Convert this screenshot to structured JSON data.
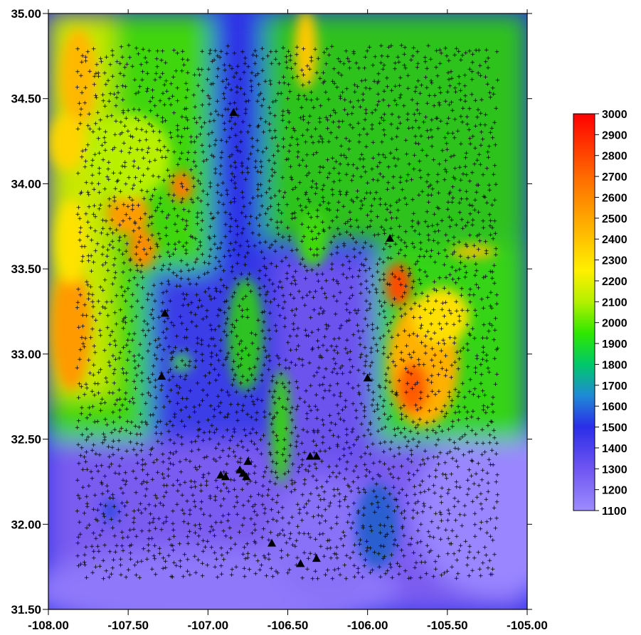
{
  "map": {
    "x_range": [
      -108.0,
      -105.0
    ],
    "y_range": [
      31.5,
      35.0
    ],
    "x_ticks": [
      {
        "value": -108.0,
        "label": "-108.00"
      },
      {
        "value": -107.5,
        "label": "-107.50"
      },
      {
        "value": -107.0,
        "label": "-107.00"
      },
      {
        "value": -106.5,
        "label": "-106.50"
      },
      {
        "value": -106.0,
        "label": "-106.00"
      },
      {
        "value": -105.5,
        "label": "-105.50"
      },
      {
        "value": -105.0,
        "label": "-105.00"
      }
    ],
    "y_ticks": [
      {
        "value": 35.0,
        "label": "35.00"
      },
      {
        "value": 34.5,
        "label": "34.50"
      },
      {
        "value": 34.0,
        "label": "34.00"
      },
      {
        "value": 33.5,
        "label": "33.50"
      },
      {
        "value": 33.0,
        "label": "33.00"
      },
      {
        "value": 32.5,
        "label": "32.50"
      },
      {
        "value": 32.0,
        "label": "32.00"
      },
      {
        "value": 31.5,
        "label": "31.50"
      }
    ],
    "station_extent": {
      "x": [
        -107.82,
        -105.18
      ],
      "y": [
        31.68,
        34.82
      ]
    },
    "station_marker": "+",
    "triangle_markers": [
      {
        "x": -106.84,
        "y": 34.42
      },
      {
        "x": -105.86,
        "y": 33.68
      },
      {
        "x": -107.27,
        "y": 33.24
      },
      {
        "x": -107.29,
        "y": 32.87
      },
      {
        "x": -106.0,
        "y": 32.86
      },
      {
        "x": -106.36,
        "y": 32.4
      },
      {
        "x": -106.32,
        "y": 32.4
      },
      {
        "x": -106.75,
        "y": 32.37
      },
      {
        "x": -106.8,
        "y": 32.32
      },
      {
        "x": -106.78,
        "y": 32.3
      },
      {
        "x": -106.92,
        "y": 32.29
      },
      {
        "x": -106.89,
        "y": 32.28
      },
      {
        "x": -106.76,
        "y": 32.28
      },
      {
        "x": -106.6,
        "y": 31.89
      },
      {
        "x": -106.42,
        "y": 31.77
      },
      {
        "x": -106.32,
        "y": 31.8
      }
    ]
  },
  "colorbar": {
    "min": 1100,
    "max": 3000,
    "labels": [
      "3000",
      "2900",
      "2800",
      "2700",
      "2600",
      "2500",
      "2400",
      "2300",
      "2200",
      "2100",
      "2000",
      "1900",
      "1800",
      "1700",
      "1600",
      "1500",
      "1400",
      "1300",
      "1200",
      "1100"
    ],
    "stops": [
      {
        "value": 1100,
        "color": "#9c8cff"
      },
      {
        "value": 1300,
        "color": "#6f55f2"
      },
      {
        "value": 1500,
        "color": "#2b2ee8"
      },
      {
        "value": 1650,
        "color": "#1e8ad6"
      },
      {
        "value": 1800,
        "color": "#00c86a"
      },
      {
        "value": 1950,
        "color": "#2fe800"
      },
      {
        "value": 2100,
        "color": "#b4f000"
      },
      {
        "value": 2250,
        "color": "#fff000"
      },
      {
        "value": 2450,
        "color": "#ffb400"
      },
      {
        "value": 2700,
        "color": "#ff6a00"
      },
      {
        "value": 3000,
        "color": "#ff0000"
      }
    ]
  }
}
